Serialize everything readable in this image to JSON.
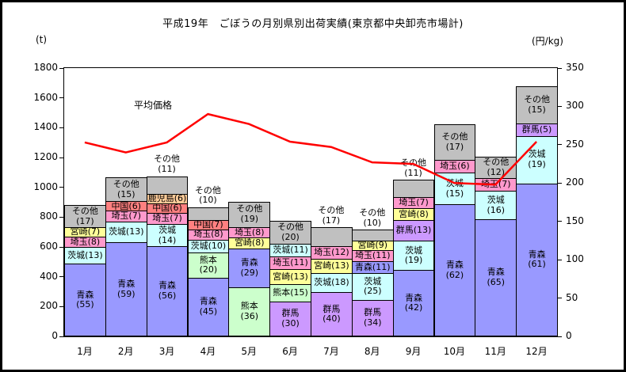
{
  "title": "平成19年　ごぼうの月別県別出荷実績(東京都中央卸売市場計)",
  "axis": {
    "left_unit": "(t)",
    "right_unit": "(円/kg)",
    "left_min": 0,
    "left_max": 1800,
    "left_step": 200,
    "right_min": 0,
    "right_max": 350,
    "right_step": 50
  },
  "chart_data": {
    "type": "bar",
    "subtype": "stacked-percent-bars-with-price-line",
    "title": "平成19年　ごぼうの月別県別出荷実績(東京都中央卸売市場計)",
    "ylabel_left": "(t)",
    "ylabel_right": "(円/kg)",
    "ylim_left": [
      0,
      1800
    ],
    "ylim_right": [
      0,
      350
    ],
    "grid": false,
    "categories": [
      "1月",
      "2月",
      "3月",
      "4月",
      "5月",
      "6月",
      "7月",
      "8月",
      "9月",
      "10月",
      "11月",
      "12月"
    ],
    "line_series": {
      "name": "平均価格",
      "unit": "円/kg",
      "color": "#FF0000",
      "values": [
        253,
        240,
        253,
        290,
        277,
        254,
        247,
        227,
        225,
        200,
        198,
        254
      ]
    },
    "bar_unit": "t",
    "segment_values_are": "percent-share",
    "colors": {
      "青森": "#9999FF",
      "茨城": "#CCFFFF",
      "埼玉": "#FF99CC",
      "宮崎": "#FFFF99",
      "熊本": "#CCFFCC",
      "群馬": "#CC99FF",
      "中国": "#FF8080",
      "鹿児島": "#FFCC99",
      "その他": "#C0C0C0"
    },
    "bars": [
      {
        "month": "1月",
        "total_t": 875,
        "segments": [
          {
            "name": "青森",
            "pct": 55
          },
          {
            "name": "茨城",
            "pct": 13
          },
          {
            "name": "埼玉",
            "pct": 8
          },
          {
            "name": "宮崎",
            "pct": 7
          },
          {
            "name": "その他",
            "pct": 17
          }
        ]
      },
      {
        "month": "2月",
        "total_t": 1060,
        "segments": [
          {
            "name": "青森",
            "pct": 59
          },
          {
            "name": "茨城",
            "pct": 13
          },
          {
            "name": "埼玉",
            "pct": 7
          },
          {
            "name": "中国",
            "pct": 6
          },
          {
            "name": "その他",
            "pct": 15
          }
        ]
      },
      {
        "month": "3月",
        "total_t": 1070,
        "segments": [
          {
            "name": "青森",
            "pct": 56
          },
          {
            "name": "茨城",
            "pct": 14
          },
          {
            "name": "埼玉",
            "pct": 7
          },
          {
            "name": "中国",
            "pct": 6
          },
          {
            "name": "鹿児島",
            "pct": 6
          },
          {
            "name": "その他",
            "pct": 11,
            "label_above": true
          }
        ]
      },
      {
        "month": "4月",
        "total_t": 860,
        "segments": [
          {
            "name": "青森",
            "pct": 45
          },
          {
            "name": "熊本",
            "pct": 20
          },
          {
            "name": "茨城",
            "pct": 10
          },
          {
            "name": "埼玉",
            "pct": 8
          },
          {
            "name": "中国",
            "pct": 7
          },
          {
            "name": "その他",
            "pct": 10,
            "label_above": true
          }
        ]
      },
      {
        "month": "5月",
        "total_t": 900,
        "segments": [
          {
            "name": "熊本",
            "pct": 36
          },
          {
            "name": "青森",
            "pct": 29
          },
          {
            "name": "宮崎",
            "pct": 8
          },
          {
            "name": "埼玉",
            "pct": 8
          },
          {
            "name": "その他",
            "pct": 19
          }
        ]
      },
      {
        "month": "6月",
        "total_t": 770,
        "segments": [
          {
            "name": "群馬",
            "pct": 30
          },
          {
            "name": "熊本",
            "pct": 15
          },
          {
            "name": "宮崎",
            "pct": 13
          },
          {
            "name": "埼玉",
            "pct": 11
          },
          {
            "name": "茨城",
            "pct": 11
          },
          {
            "name": "その他",
            "pct": 20
          }
        ]
      },
      {
        "month": "7月",
        "total_t": 725,
        "segments": [
          {
            "name": "群馬",
            "pct": 40
          },
          {
            "name": "茨城",
            "pct": 18
          },
          {
            "name": "宮崎",
            "pct": 13
          },
          {
            "name": "埼玉",
            "pct": 12
          },
          {
            "name": "その他",
            "pct": 17,
            "label_above": true
          }
        ]
      },
      {
        "month": "8月",
        "total_t": 710,
        "segments": [
          {
            "name": "群馬",
            "pct": 34
          },
          {
            "name": "茨城",
            "pct": 25
          },
          {
            "name": "青森",
            "pct": 11
          },
          {
            "name": "埼玉",
            "pct": 11
          },
          {
            "name": "宮崎",
            "pct": 9
          },
          {
            "name": "その他",
            "pct": 10,
            "label_above": true
          }
        ]
      },
      {
        "month": "9月",
        "total_t": 1045,
        "segments": [
          {
            "name": "青森",
            "pct": 42
          },
          {
            "name": "茨城",
            "pct": 19
          },
          {
            "name": "群馬",
            "pct": 13
          },
          {
            "name": "宮崎",
            "pct": 8
          },
          {
            "name": "埼玉",
            "pct": 7
          },
          {
            "name": "その他",
            "pct": 11,
            "label_above": true
          }
        ]
      },
      {
        "month": "10月",
        "total_t": 1420,
        "segments": [
          {
            "name": "青森",
            "pct": 62
          },
          {
            "name": "茨城",
            "pct": 15
          },
          {
            "name": "埼玉",
            "pct": 6
          },
          {
            "name": "その他",
            "pct": 17
          }
        ]
      },
      {
        "month": "11月",
        "total_t": 1200,
        "segments": [
          {
            "name": "青森",
            "pct": 65
          },
          {
            "name": "茨城",
            "pct": 16
          },
          {
            "name": "埼玉",
            "pct": 7
          },
          {
            "name": "その他",
            "pct": 12
          }
        ]
      },
      {
        "month": "12月",
        "total_t": 1675,
        "segments": [
          {
            "name": "青森",
            "pct": 61
          },
          {
            "name": "茨城",
            "pct": 19
          },
          {
            "name": "群馬",
            "pct": 5
          },
          {
            "name": "その他",
            "pct": 15
          }
        ]
      }
    ]
  }
}
